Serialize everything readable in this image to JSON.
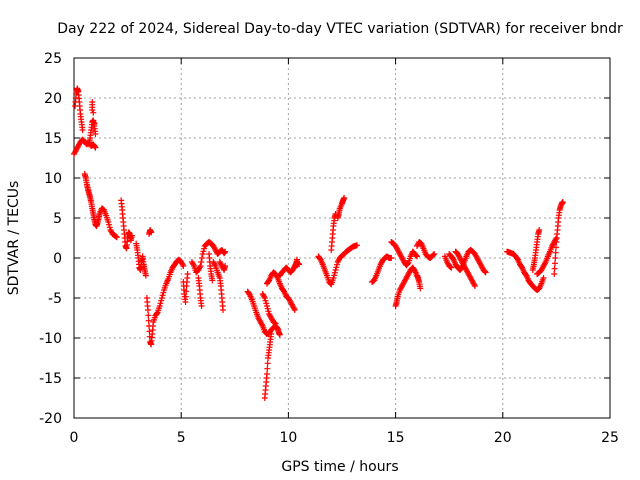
{
  "chart_data": {
    "type": "scatter",
    "title": "Day 222 of 2024, Sidereal Day-to-day VTEC variation (SDTVAR) for receiver bndr",
    "xlabel": "GPS time / hours",
    "ylabel": "SDTVAR / TECUs",
    "xlim": [
      0,
      25
    ],
    "ylim": [
      -20,
      25
    ],
    "xticks": [
      0,
      5,
      10,
      15,
      20,
      25
    ],
    "yticks": [
      -20,
      -15,
      -10,
      -5,
      0,
      5,
      10,
      15,
      20,
      25
    ],
    "grid": true,
    "marker": "+",
    "color": "#ff0000",
    "segments": [
      [
        [
          0.0,
          13
        ],
        [
          0.1,
          13.5
        ],
        [
          0.2,
          14
        ],
        [
          0.3,
          14.5
        ],
        [
          0.4,
          14.8
        ],
        [
          0.5,
          14.5
        ],
        [
          0.6,
          14.2
        ],
        [
          0.7,
          14.5
        ],
        [
          0.8,
          14.0
        ],
        [
          0.9,
          14.2
        ],
        [
          1.0,
          13.8
        ]
      ],
      [
        [
          0.05,
          19
        ],
        [
          0.1,
          20.5
        ],
        [
          0.15,
          21.2
        ],
        [
          0.2,
          20.8
        ],
        [
          0.25,
          19.5
        ],
        [
          0.3,
          18
        ],
        [
          0.35,
          17
        ],
        [
          0.4,
          16
        ]
      ],
      [
        [
          0.5,
          10.5
        ],
        [
          0.55,
          10
        ],
        [
          0.6,
          9.2
        ],
        [
          0.65,
          8.6
        ],
        [
          0.7,
          8.1
        ],
        [
          0.75,
          7.6
        ],
        [
          0.8,
          7.0
        ],
        [
          0.85,
          6.2
        ],
        [
          0.9,
          5.5
        ],
        [
          0.95,
          4.8
        ],
        [
          1.0,
          4.2
        ],
        [
          1.05,
          4.0
        ],
        [
          1.1,
          4.4
        ],
        [
          1.15,
          5.0
        ],
        [
          1.2,
          5.6
        ],
        [
          1.3,
          6.2
        ],
        [
          1.4,
          6.0
        ],
        [
          1.5,
          5.3
        ],
        [
          1.6,
          4.5
        ],
        [
          1.7,
          3.5
        ],
        [
          1.8,
          3.0
        ],
        [
          1.9,
          2.8
        ],
        [
          2.0,
          2.6
        ]
      ],
      [
        [
          0.7,
          14.2
        ],
        [
          0.75,
          15
        ],
        [
          0.8,
          16
        ],
        [
          0.85,
          17
        ],
        [
          0.9,
          17.2
        ],
        [
          0.95,
          16.5
        ],
        [
          1.0,
          15.5
        ],
        [
          0.85,
          19.5
        ],
        [
          0.85,
          18.5
        ]
      ],
      [
        [
          2.2,
          7.2
        ],
        [
          2.25,
          6
        ],
        [
          2.3,
          4.5
        ],
        [
          2.35,
          3
        ],
        [
          2.4,
          1.5
        ],
        [
          2.45,
          1.2
        ],
        [
          2.5,
          2.5
        ],
        [
          2.55,
          3.2
        ],
        [
          2.6,
          3.0
        ],
        [
          2.65,
          2.2
        ],
        [
          2.7,
          2.8
        ]
      ],
      [
        [
          2.9,
          1.8
        ],
        [
          2.95,
          1.0
        ],
        [
          3.0,
          0.0
        ],
        [
          3.05,
          -1.2
        ],
        [
          3.1,
          -1.5
        ],
        [
          3.15,
          -0.5
        ],
        [
          3.2,
          0.2
        ],
        [
          3.25,
          -0.8
        ],
        [
          3.3,
          -1.5
        ],
        [
          3.35,
          -2.2
        ]
      ],
      [
        [
          3.5,
          3.0
        ],
        [
          3.55,
          3.5
        ],
        [
          3.6,
          3.2
        ]
      ],
      [
        [
          3.4,
          -5.0
        ],
        [
          3.45,
          -6.5
        ],
        [
          3.5,
          -8.5
        ],
        [
          3.55,
          -10.5
        ],
        [
          3.6,
          -10.8
        ],
        [
          3.65,
          -9.5
        ],
        [
          3.7,
          -8.0
        ],
        [
          3.8,
          -7.2
        ],
        [
          3.9,
          -6.8
        ],
        [
          4.0,
          -6.0
        ],
        [
          4.1,
          -5.0
        ],
        [
          4.2,
          -4.0
        ],
        [
          4.3,
          -3.2
        ],
        [
          4.4,
          -2.6
        ],
        [
          4.5,
          -1.8
        ],
        [
          4.6,
          -1.2
        ],
        [
          4.7,
          -0.8
        ],
        [
          4.8,
          -0.4
        ],
        [
          4.9,
          -0.2
        ],
        [
          5.0,
          -0.5
        ],
        [
          5.1,
          -1.0
        ]
      ],
      [
        [
          5.1,
          -3.0
        ],
        [
          5.15,
          -4.5
        ],
        [
          5.2,
          -5.5
        ],
        [
          5.25,
          -3.5
        ],
        [
          5.3,
          -2.0
        ]
      ],
      [
        [
          5.5,
          -0.5
        ],
        [
          5.6,
          -1.0
        ],
        [
          5.7,
          -1.8
        ],
        [
          5.8,
          -1.5
        ],
        [
          5.9,
          -1.0
        ],
        [
          6.0,
          0.5
        ],
        [
          6.1,
          1.5
        ],
        [
          6.2,
          1.8
        ],
        [
          6.3,
          2.0
        ],
        [
          6.4,
          1.8
        ],
        [
          6.5,
          1.5
        ],
        [
          6.6,
          1.0
        ],
        [
          6.7,
          0.5
        ],
        [
          6.8,
          0.8
        ],
        [
          6.9,
          1.0
        ],
        [
          7.0,
          0.6
        ],
        [
          7.05,
          0.8
        ]
      ],
      [
        [
          5.8,
          -2.5
        ],
        [
          5.85,
          -3.5
        ],
        [
          5.9,
          -5.0
        ],
        [
          5.95,
          -6.0
        ]
      ],
      [
        [
          6.3,
          0.5
        ],
        [
          6.35,
          -1.0
        ],
        [
          6.4,
          -2.0
        ],
        [
          6.45,
          -2.8
        ]
      ],
      [
        [
          6.5,
          -0.5
        ],
        [
          6.6,
          -1.0
        ],
        [
          6.7,
          -1.8
        ],
        [
          6.8,
          -2.5
        ],
        [
          6.85,
          -3.5
        ],
        [
          6.9,
          -5.0
        ],
        [
          6.95,
          -6.5
        ]
      ],
      [
        [
          6.8,
          -0.5
        ],
        [
          6.9,
          -1.0
        ],
        [
          7.0,
          -1.5
        ],
        [
          7.05,
          -1.0
        ]
      ],
      [
        [
          8.1,
          -4.2
        ],
        [
          8.2,
          -4.6
        ],
        [
          8.3,
          -5.2
        ],
        [
          8.4,
          -6.0
        ],
        [
          8.5,
          -6.8
        ],
        [
          8.6,
          -7.5
        ],
        [
          8.7,
          -8.0
        ],
        [
          8.8,
          -8.5
        ],
        [
          8.9,
          -9.2
        ],
        [
          9.0,
          -9.5
        ],
        [
          9.1,
          -9.4
        ],
        [
          9.2,
          -9.0
        ],
        [
          9.3,
          -8.7
        ],
        [
          9.4,
          -8.5
        ],
        [
          9.5,
          -8.8
        ],
        [
          9.55,
          -9.3
        ],
        [
          9.6,
          -9.6
        ]
      ],
      [
        [
          8.9,
          -17.5
        ],
        [
          8.95,
          -16
        ],
        [
          9.0,
          -14.5
        ],
        [
          9.05,
          -12.5
        ],
        [
          9.1,
          -11.5
        ],
        [
          9.15,
          -10.5
        ],
        [
          9.2,
          -9.5
        ]
      ],
      [
        [
          8.8,
          -4.5
        ],
        [
          8.9,
          -5.0
        ],
        [
          9.0,
          -6.0
        ],
        [
          9.1,
          -7.0
        ],
        [
          9.2,
          -7.5
        ],
        [
          9.3,
          -8.0
        ],
        [
          9.4,
          -8.2
        ]
      ],
      [
        [
          9.0,
          -3.2
        ],
        [
          9.1,
          -2.8
        ],
        [
          9.2,
          -2.2
        ],
        [
          9.3,
          -1.8
        ],
        [
          9.4,
          -2.0
        ],
        [
          9.5,
          -2.5
        ],
        [
          9.6,
          -3.2
        ],
        [
          9.7,
          -3.8
        ],
        [
          9.8,
          -4.2
        ],
        [
          9.9,
          -4.8
        ],
        [
          10.0,
          -5.0
        ],
        [
          10.1,
          -5.5
        ],
        [
          10.2,
          -6.0
        ],
        [
          10.3,
          -6.5
        ]
      ],
      [
        [
          9.6,
          -2.2
        ],
        [
          9.7,
          -1.8
        ],
        [
          9.8,
          -1.5
        ],
        [
          9.9,
          -1.2
        ],
        [
          10.0,
          -1.5
        ],
        [
          10.1,
          -1.8
        ],
        [
          10.2,
          -1.5
        ],
        [
          10.3,
          -1.0
        ],
        [
          10.4,
          -0.5
        ],
        [
          10.5,
          -0.8
        ]
      ],
      [
        [
          10.3,
          -1.2
        ],
        [
          10.35,
          -0.8
        ],
        [
          10.4,
          -0.2
        ]
      ],
      [
        [
          11.4,
          0.2
        ],
        [
          11.5,
          -0.2
        ],
        [
          11.6,
          -0.8
        ],
        [
          11.7,
          -1.5
        ],
        [
          11.8,
          -2.2
        ],
        [
          11.9,
          -3.0
        ],
        [
          12.0,
          -3.3
        ],
        [
          12.1,
          -2.5
        ],
        [
          12.2,
          -1.5
        ],
        [
          12.3,
          -0.5
        ],
        [
          12.4,
          0.0
        ],
        [
          12.5,
          0.3
        ],
        [
          12.6,
          0.5
        ],
        [
          12.7,
          0.8
        ],
        [
          12.8,
          1.0
        ],
        [
          12.9,
          1.2
        ],
        [
          13.0,
          1.4
        ],
        [
          13.1,
          1.5
        ],
        [
          13.2,
          1.6
        ]
      ],
      [
        [
          12.0,
          1.0
        ],
        [
          12.05,
          2.5
        ],
        [
          12.1,
          4.0
        ],
        [
          12.15,
          5.0
        ],
        [
          12.2,
          5.5
        ]
      ],
      [
        [
          12.3,
          5.0
        ],
        [
          12.35,
          5.5
        ],
        [
          12.4,
          6.2
        ],
        [
          12.5,
          6.8
        ],
        [
          12.55,
          7.2
        ],
        [
          12.6,
          7.5
        ]
      ],
      [
        [
          13.9,
          -3.0
        ],
        [
          14.0,
          -2.8
        ],
        [
          14.1,
          -2.2
        ],
        [
          14.2,
          -1.5
        ],
        [
          14.3,
          -0.8
        ],
        [
          14.4,
          -0.3
        ],
        [
          14.5,
          0.0
        ],
        [
          14.6,
          0.2
        ],
        [
          14.7,
          0.0
        ],
        [
          14.8,
          0.0
        ]
      ],
      [
        [
          14.8,
          2.0
        ],
        [
          14.9,
          1.8
        ],
        [
          15.0,
          1.5
        ],
        [
          15.1,
          1.0
        ],
        [
          15.2,
          0.5
        ],
        [
          15.3,
          0.0
        ],
        [
          15.4,
          -0.5
        ],
        [
          15.5,
          -0.9
        ],
        [
          15.6,
          -0.6
        ],
        [
          15.7,
          0.2
        ],
        [
          15.8,
          0.8
        ],
        [
          15.9,
          0.5
        ],
        [
          16.0,
          0.2
        ]
      ],
      [
        [
          15.0,
          -6.0
        ],
        [
          15.05,
          -5.5
        ],
        [
          15.1,
          -4.8
        ],
        [
          15.2,
          -4.0
        ],
        [
          15.3,
          -3.5
        ],
        [
          15.4,
          -3.0
        ],
        [
          15.5,
          -2.5
        ],
        [
          15.6,
          -2.0
        ],
        [
          15.7,
          -1.5
        ],
        [
          15.8,
          -1.2
        ],
        [
          15.9,
          -1.6
        ],
        [
          16.0,
          -2.2
        ],
        [
          16.05,
          -2.5
        ],
        [
          16.1,
          -3.0
        ],
        [
          16.15,
          -3.8
        ]
      ],
      [
        [
          16.0,
          1.5
        ],
        [
          16.1,
          2.0
        ],
        [
          16.2,
          1.8
        ],
        [
          16.3,
          1.2
        ],
        [
          16.4,
          0.5
        ],
        [
          16.5,
          0.2
        ],
        [
          16.6,
          0.0
        ],
        [
          16.7,
          0.2
        ],
        [
          16.8,
          0.5
        ]
      ],
      [
        [
          17.3,
          0.2
        ],
        [
          17.4,
          -0.5
        ],
        [
          17.5,
          -1.0
        ],
        [
          17.6,
          -1.2
        ]
      ],
      [
        [
          17.5,
          0.5
        ],
        [
          17.6,
          0.2
        ],
        [
          17.7,
          -0.2
        ],
        [
          17.8,
          -0.8
        ],
        [
          17.9,
          -1.2
        ],
        [
          18.0,
          -1.5
        ],
        [
          18.1,
          -1.2
        ],
        [
          18.2,
          -0.5
        ],
        [
          18.3,
          0.2
        ],
        [
          18.4,
          0.8
        ],
        [
          18.5,
          1.0
        ],
        [
          18.6,
          0.8
        ],
        [
          18.7,
          0.5
        ],
        [
          18.8,
          0.0
        ],
        [
          18.9,
          -0.5
        ],
        [
          19.0,
          -1.0
        ],
        [
          19.1,
          -1.5
        ],
        [
          19.2,
          -1.8
        ]
      ],
      [
        [
          17.8,
          0.8
        ],
        [
          17.9,
          0.5
        ],
        [
          18.0,
          0.0
        ],
        [
          18.1,
          -0.5
        ],
        [
          18.2,
          -1.0
        ],
        [
          18.3,
          -1.5
        ],
        [
          18.4,
          -2.0
        ],
        [
          18.5,
          -2.5
        ],
        [
          18.6,
          -3.0
        ],
        [
          18.7,
          -3.5
        ]
      ],
      [
        [
          20.2,
          0.8
        ],
        [
          20.3,
          0.7
        ],
        [
          20.4,
          0.6
        ],
        [
          20.5,
          0.5
        ],
        [
          20.6,
          0.2
        ],
        [
          20.7,
          -0.2
        ],
        [
          20.8,
          -0.8
        ],
        [
          20.9,
          -1.2
        ],
        [
          21.0,
          -1.8
        ],
        [
          21.1,
          -2.2
        ],
        [
          21.2,
          -2.8
        ],
        [
          21.3,
          -3.2
        ],
        [
          21.4,
          -3.5
        ],
        [
          21.5,
          -3.8
        ],
        [
          21.6,
          -4.0
        ],
        [
          21.7,
          -3.8
        ],
        [
          21.8,
          -3.2
        ],
        [
          21.9,
          -2.5
        ]
      ],
      [
        [
          21.4,
          -1.5
        ],
        [
          21.45,
          -0.8
        ],
        [
          21.5,
          0.0
        ],
        [
          21.55,
          1.0
        ],
        [
          21.6,
          2.0
        ],
        [
          21.65,
          3.0
        ],
        [
          21.7,
          3.5
        ]
      ],
      [
        [
          21.6,
          -2.0
        ],
        [
          21.7,
          -1.8
        ],
        [
          21.8,
          -1.5
        ],
        [
          21.9,
          -1.0
        ],
        [
          22.0,
          -0.5
        ],
        [
          22.1,
          0.2
        ],
        [
          22.2,
          0.8
        ],
        [
          22.3,
          1.5
        ],
        [
          22.4,
          2.0
        ],
        [
          22.5,
          2.5
        ]
      ],
      [
        [
          22.4,
          -2.0
        ],
        [
          22.45,
          0.0
        ],
        [
          22.5,
          2.0
        ],
        [
          22.55,
          3.5
        ],
        [
          22.6,
          5.0
        ],
        [
          22.65,
          6.0
        ],
        [
          22.7,
          6.5
        ],
        [
          22.8,
          7.0
        ],
        [
          22.75,
          6.8
        ]
      ]
    ]
  }
}
